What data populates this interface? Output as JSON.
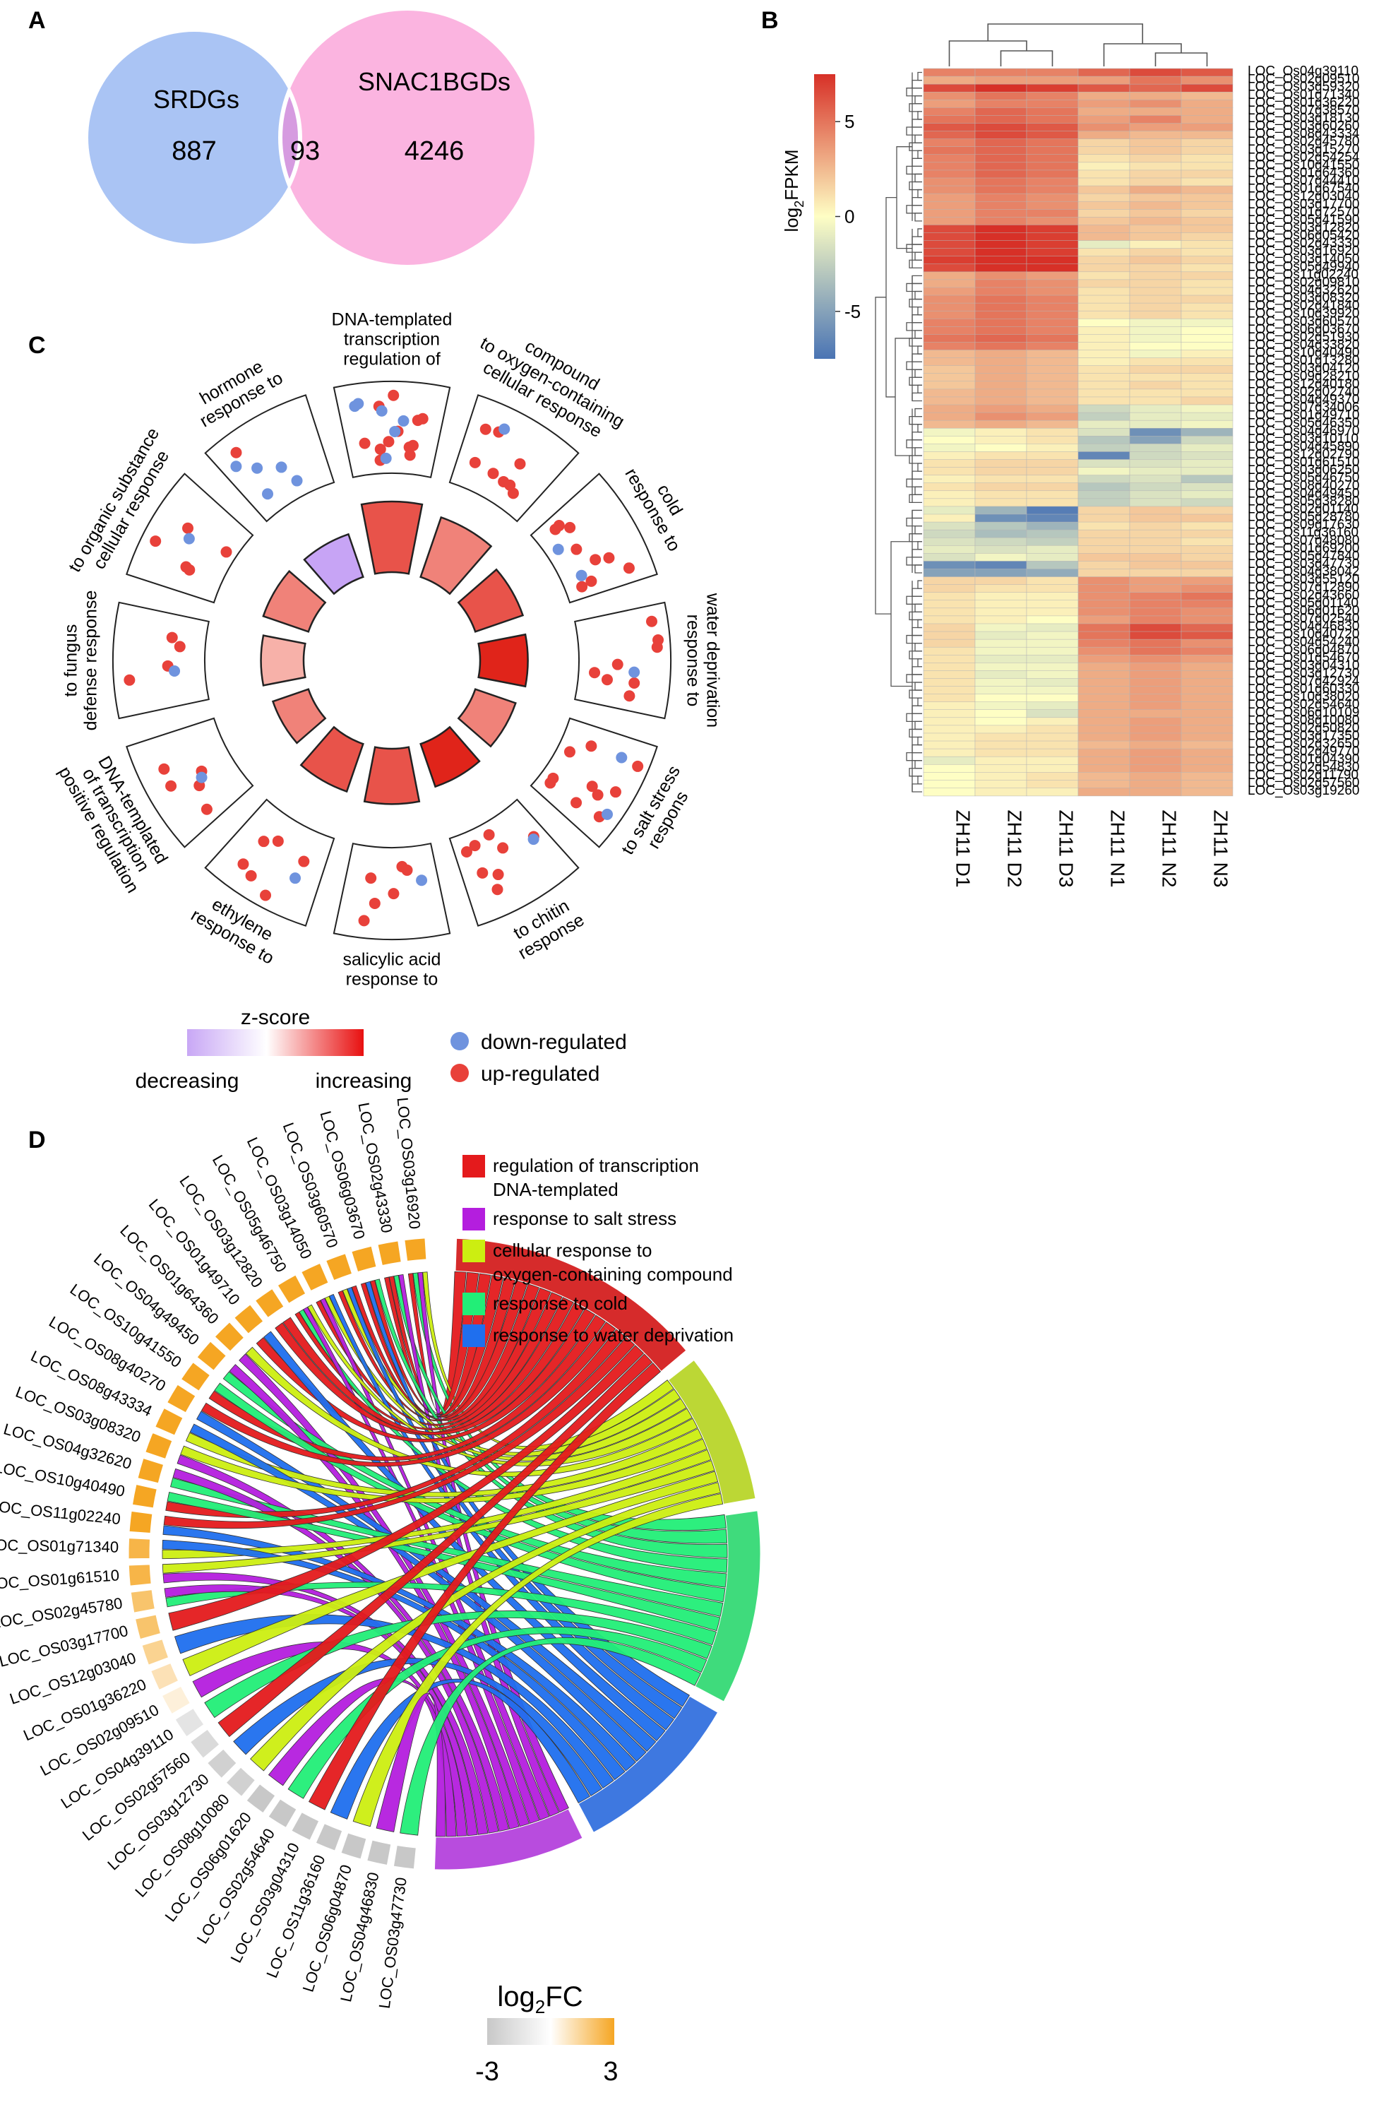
{
  "panels": {
    "A": "A",
    "B": "B",
    "C": "C",
    "D": "D"
  },
  "chart_data": [
    {
      "type": "venn",
      "panel": "A",
      "sets": [
        {
          "name": "SRDGs",
          "only_count": "887",
          "color": "#aac4f4"
        },
        {
          "name": "SNAC1BGDs",
          "only_count": "4246",
          "color": "#fbb4e0"
        }
      ],
      "intersection": "93",
      "intersection_color": "#d69be0"
    },
    {
      "type": "heatmap",
      "panel": "B",
      "legend_title_main": "log",
      "legend_title_sub": "2",
      "legend_title_rest": "FPKM",
      "legend_ticks": [
        "5",
        "0",
        "-5"
      ],
      "legend_tick_values": [
        5,
        0,
        -5
      ],
      "legend_range": [
        -7.5,
        7.5
      ],
      "colors": {
        "low": "#4a74b4",
        "mid": "#fefec4",
        "high": "#d73027"
      },
      "columns": [
        "ZH11 D1",
        "ZH11 D2",
        "ZH11 D3",
        "ZH11 N1",
        "ZH11 N2",
        "ZH11 N3"
      ],
      "rows": [
        "LOC_Os04g39110",
        "LOC_Os02g09510",
        "LOC_Os03g59320",
        "LOC_Os01g71340",
        "LOC_Os01g36220",
        "LOC_Os07g38570",
        "LOC_Os03g18130",
        "LOC_Os03g60260",
        "LOC_Os08g43334",
        "LOC_Os02g45780",
        "LOC_Os03g15270",
        "LOC_Os02g54254",
        "LOC_Os10g41550",
        "LOC_Os01g64360",
        "LOC_Os07g44410",
        "LOC_Os01g67540",
        "LOC_Os12g03040",
        "LOC_Os03g17700",
        "LOC_Os01g72570",
        "LOC_Os05g41590",
        "LOC_Os03g12820",
        "LOC_Os06g05420",
        "LOC_Os02g43330",
        "LOC_Os03g16920",
        "LOC_Os03g14050",
        "LOC_Os05g49940",
        "LOC_Os11g02240",
        "LOC_Os02g09810",
        "LOC_Os04g32620",
        "LOC_Os03g08320",
        "LOC_Os02g41840",
        "LOC_Os10g39920",
        "LOC_Os03g60570",
        "LOC_Os06g03670",
        "LOC_Os02g51930",
        "LOC_Os04g33820",
        "LOC_Os10g40490",
        "LOC_Os01g13280",
        "LOC_Os03g04120",
        "LOC_Os09g28210",
        "LOC_Os12g40180",
        "LOC_Os02g02740",
        "LOC_Os04g49370",
        "LOC_Os07g34006",
        "LOC_Os01g49710",
        "LOC_Os05g46350",
        "LOC_Os04g46970",
        "LOC_Os03g10110",
        "LOC_Os04g45890",
        "LOC_Os12g02790",
        "LOC_Os01g61510",
        "LOC_Os03g06250",
        "LOC_Os05g46750",
        "LOC_Os08g40270",
        "LOC_Os04g49450",
        "LOC_Os05g38280",
        "LOC_Os02g01140",
        "LOC_Os05g28780",
        "LOC_Os09g17630",
        "LOC_Os11g36160",
        "LOC_Os07g48080",
        "LOC_Os01g69200",
        "LOC_Os05g47840",
        "LOC_Os03g47730",
        "LOC_Os04g38042",
        "LOC_Os03g55120",
        "LOC_Os07g12890",
        "LOC_Os02g43660",
        "LOC_Os05g01140",
        "LOC_Os06g01620",
        "LOC_Os07g02540",
        "LOC_Os04g46830",
        "LOC_Os10g40720",
        "LOC_Os04g54240",
        "LOC_Os06g04870",
        "LOC_Os01g54670",
        "LOC_Os03g04310",
        "LOC_Os03g12730",
        "LOC_Os07g42924",
        "LOC_Os01g60330",
        "LOC_Os10g38020",
        "LOC_Os02g54640",
        "LOC_Os06g10109",
        "LOC_Os08g10080",
        "LOC_Os02g50820",
        "LOC_Os03g17350",
        "LOC_Os02g32650",
        "LOC_Os02g49770",
        "LOC_Os01g04390",
        "LOC_Os02g54830",
        "LOC_Os02g11790",
        "LOC_Os02g57560",
        "LOC_Os03g19260"
      ],
      "values": [
        [
          4.5,
          4.5,
          4.5,
          5.5,
          6.5,
          6
        ],
        [
          3,
          3.5,
          3.5,
          3.5,
          5,
          4
        ],
        [
          6.5,
          7.5,
          7,
          6,
          5.5,
          6.5
        ],
        [
          4,
          5,
          4.5,
          3,
          3,
          2.5
        ],
        [
          3.5,
          4.5,
          4.5,
          3.5,
          4,
          3
        ],
        [
          4.5,
          5.5,
          5,
          3,
          3,
          3
        ],
        [
          5,
          5.5,
          5,
          3.5,
          4.5,
          3
        ],
        [
          6,
          6.5,
          6,
          4,
          3.5,
          3.5
        ],
        [
          5.5,
          6.5,
          6,
          3,
          2.5,
          2.5
        ],
        [
          4.5,
          5.5,
          5,
          1.5,
          2,
          1.5
        ],
        [
          5,
          5.5,
          5,
          1.5,
          2,
          1.5
        ],
        [
          4.5,
          5.5,
          5,
          1,
          1.5,
          1
        ],
        [
          4.5,
          5.5,
          5,
          0.5,
          1,
          1
        ],
        [
          4.5,
          5.5,
          5,
          1,
          1.5,
          1.5
        ],
        [
          4,
          5,
          4.5,
          1,
          1.5,
          1
        ],
        [
          4,
          5,
          4.5,
          2,
          3,
          2.5
        ],
        [
          3.5,
          4.5,
          4,
          1.5,
          2,
          2
        ],
        [
          3.5,
          4.5,
          4,
          2,
          2.5,
          2
        ],
        [
          3.5,
          4.5,
          4.5,
          1.5,
          2,
          1.5
        ],
        [
          3.5,
          4.5,
          4,
          2,
          2.5,
          2
        ],
        [
          6.5,
          7.5,
          7,
          2.5,
          2,
          2
        ],
        [
          6.5,
          7.5,
          7,
          2.5,
          2,
          1.5
        ],
        [
          6.5,
          7.5,
          7,
          -1,
          0.5,
          1
        ],
        [
          6.5,
          7.5,
          7,
          1,
          1.5,
          1
        ],
        [
          7,
          8,
          7.5,
          1.5,
          2,
          1.5
        ],
        [
          6.5,
          8,
          7.5,
          1.5,
          1.5,
          1
        ],
        [
          3,
          4,
          3.5,
          1,
          1.5,
          1.5
        ],
        [
          3,
          4.5,
          4,
          1.5,
          1.5,
          1
        ],
        [
          3.5,
          4.5,
          4,
          1,
          1.5,
          1
        ],
        [
          4,
          5,
          4.5,
          1,
          1.5,
          1.5
        ],
        [
          4,
          5,
          4.5,
          1,
          1.5,
          1
        ],
        [
          4,
          5,
          4.5,
          1,
          1.5,
          1
        ],
        [
          4.5,
          5,
          4.5,
          0,
          -0.5,
          -0.5
        ],
        [
          4.5,
          5,
          4.5,
          0.5,
          -0.5,
          0
        ],
        [
          5,
          5.5,
          5,
          0.5,
          -0.5,
          0
        ],
        [
          4.5,
          5,
          4.5,
          0.5,
          0,
          0
        ],
        [
          2.5,
          3,
          2.5,
          0.5,
          -0.5,
          0.5
        ],
        [
          2.5,
          3,
          2.5,
          0.5,
          1,
          1
        ],
        [
          2,
          3,
          2.5,
          1,
          1.5,
          1.5
        ],
        [
          2,
          3,
          2.5,
          1,
          1,
          1
        ],
        [
          2,
          3,
          2.5,
          1,
          1.5,
          1
        ],
        [
          2.5,
          3,
          2.5,
          1,
          1,
          1
        ],
        [
          2.5,
          3,
          2.5,
          1,
          1,
          1.5
        ],
        [
          3,
          3.5,
          3,
          -2,
          -1,
          -0.5
        ],
        [
          3,
          4,
          3.5,
          -2.5,
          -1,
          -1
        ],
        [
          2.5,
          3,
          2.5,
          -1,
          -1,
          -0.5
        ],
        [
          -0.5,
          0.5,
          1,
          -1.5,
          -6,
          -4
        ],
        [
          0,
          0.5,
          1,
          -3,
          -5,
          -2
        ],
        [
          -0.5,
          0,
          0.5,
          -2.5,
          -2,
          -1
        ],
        [
          0.5,
          1,
          1,
          -6.5,
          -2,
          -1.5
        ],
        [
          1,
          1.5,
          1.5,
          -1.5,
          -1.5,
          -1
        ],
        [
          1,
          1.5,
          1.5,
          -0.5,
          -1,
          -1
        ],
        [
          0.5,
          1,
          1,
          -2,
          -1.5,
          -3
        ],
        [
          1,
          1.5,
          1.5,
          -3,
          -2,
          -1.5
        ],
        [
          0.5,
          1,
          1,
          -2.5,
          -1.5,
          -1
        ],
        [
          0.5,
          1,
          1,
          -2.5,
          -1.5,
          -2
        ],
        [
          -1,
          -4,
          -7,
          1.5,
          2,
          1.5
        ],
        [
          0.5,
          -6,
          -6.5,
          1.5,
          2,
          2
        ],
        [
          -1.5,
          -3,
          -4,
          1,
          1.5,
          1
        ],
        [
          -2,
          -3.5,
          -3,
          1.5,
          1.5,
          1.5
        ],
        [
          -1.5,
          -2,
          -2.5,
          1.5,
          1.5,
          1
        ],
        [
          -1,
          -1.5,
          -1,
          1.5,
          1.5,
          1.5
        ],
        [
          -1.5,
          -0.5,
          -1,
          2,
          2,
          1.5
        ],
        [
          -6,
          -6.5,
          -3,
          1.5,
          2,
          2
        ],
        [
          -5,
          -5,
          -4.5,
          1.5,
          1.5,
          1.5
        ],
        [
          1.5,
          1.5,
          1,
          4,
          3.5,
          3.5
        ],
        [
          1.5,
          1,
          1,
          4,
          3.5,
          4
        ],
        [
          1,
          0.5,
          0.5,
          4,
          4.5,
          5
        ],
        [
          1,
          0.5,
          0.5,
          4,
          4.5,
          4.5
        ],
        [
          1,
          0.5,
          0.5,
          4,
          4.5,
          4
        ],
        [
          1,
          0.5,
          0,
          3.5,
          4.5,
          4
        ],
        [
          1.5,
          -0.5,
          -1,
          5,
          6.5,
          5.5
        ],
        [
          1.5,
          -1,
          -0.5,
          5,
          6.5,
          6
        ],
        [
          1.5,
          -0.5,
          -0.5,
          4.5,
          5,
          4
        ],
        [
          1,
          -0.5,
          -0.5,
          4,
          5,
          4.5
        ],
        [
          1,
          -1,
          -1,
          3.5,
          4,
          3.5
        ],
        [
          1,
          -0.5,
          -0.5,
          3,
          3.5,
          3
        ],
        [
          1,
          -1,
          -0.5,
          3,
          3.5,
          3
        ],
        [
          1,
          -0.5,
          -1,
          3,
          3.5,
          3
        ],
        [
          1,
          -0.5,
          -0.5,
          3,
          3.5,
          3
        ],
        [
          1,
          0,
          0,
          3,
          3.5,
          3
        ],
        [
          0.5,
          -0.5,
          -1,
          3,
          3.5,
          3
        ],
        [
          0.5,
          0,
          -1.5,
          3,
          3,
          3
        ],
        [
          0.5,
          0,
          0.5,
          3,
          3.5,
          3
        ],
        [
          0.5,
          0.5,
          1,
          3,
          3.5,
          3
        ],
        [
          0.5,
          1,
          1,
          3,
          3.5,
          3
        ],
        [
          0.5,
          1,
          1,
          2.5,
          3,
          2.5
        ],
        [
          0.5,
          1,
          1,
          3,
          3.5,
          3
        ],
        [
          -1,
          0.5,
          0.5,
          3,
          3.5,
          3
        ],
        [
          0,
          0.5,
          0.5,
          3,
          3.5,
          3
        ],
        [
          0,
          0.5,
          1,
          2.5,
          3,
          2.5
        ],
        [
          0,
          0.5,
          1,
          2.5,
          3,
          2.5
        ],
        [
          0,
          0.5,
          0.5,
          3,
          3,
          2.5
        ]
      ]
    },
    {
      "type": "circular_bar_scatter",
      "panel": "C",
      "terms": [
        {
          "label": "regulation of\ntranscription\nDNA-templated",
          "zscore": 3,
          "bar": 1.0,
          "up": 12,
          "down": 6
        },
        {
          "label": "cellular response\nto oxygen-containing\ncompound",
          "zscore": 2,
          "bar": 0.85,
          "up": 8,
          "down": 1
        },
        {
          "label": "response to\ncold",
          "zscore": 3,
          "bar": 0.6,
          "up": 9,
          "down": 2
        },
        {
          "label": "response to\nwater deprivation",
          "zscore": 4,
          "bar": 0.55,
          "up": 8,
          "down": 1
        },
        {
          "label": "respons\nto salt stress",
          "zscore": 2,
          "bar": 0.45,
          "up": 10,
          "down": 2
        },
        {
          "label": "response\nto chitin",
          "zscore": 4,
          "bar": 0.5,
          "up": 8,
          "down": 1
        },
        {
          "label": "response to\nsalicylic acid",
          "zscore": 3,
          "bar": 0.7,
          "up": 6,
          "down": 1
        },
        {
          "label": "response to\nethylene",
          "zscore": 3,
          "bar": 0.6,
          "up": 6,
          "down": 1
        },
        {
          "label": "positive regulation\nof transcription\nDNA-templated",
          "zscore": 2,
          "bar": 0.35,
          "up": 5,
          "down": 1
        },
        {
          "label": "defense response\nto fungus",
          "zscore": 1,
          "bar": 0.45,
          "up": 4,
          "down": 1
        },
        {
          "label": "cellular response\nto organic substance",
          "zscore": 2,
          "bar": 0.55,
          "up": 5,
          "down": 1
        },
        {
          "label": "response to\nhormone",
          "zscore": -2,
          "bar": 0.5,
          "up": 1,
          "down": 5
        }
      ],
      "legend": {
        "title": "z-score",
        "low_label": "decreasing",
        "high_label": "increasing",
        "down_label": "down-regulated",
        "up_label": "up-regulated",
        "down_color": "#6f93de",
        "up_color": "#e8413a"
      }
    },
    {
      "type": "chord",
      "panel": "D",
      "genes": [
        {
          "name": "LOC_OS03g16920",
          "log2fc": 3
        },
        {
          "name": "LOC_OS02g43330",
          "log2fc": 3
        },
        {
          "name": "LOC_OS06g03670",
          "log2fc": 3
        },
        {
          "name": "LOC_OS03g60570",
          "log2fc": 3
        },
        {
          "name": "LOC_OS03g14050",
          "log2fc": 3
        },
        {
          "name": "LOC_OS05g46750",
          "log2fc": 3
        },
        {
          "name": "LOC_OS03g12820",
          "log2fc": 3
        },
        {
          "name": "LOC_OS01g49710",
          "log2fc": 3
        },
        {
          "name": "LOC_OS01g64360",
          "log2fc": 3
        },
        {
          "name": "LOC_OS04g49450",
          "log2fc": 3
        },
        {
          "name": "LOC_OS10g41550",
          "log2fc": 3
        },
        {
          "name": "LOC_OS08g40270",
          "log2fc": 3
        },
        {
          "name": "LOC_OS08g43334",
          "log2fc": 3
        },
        {
          "name": "LOC_OS03g08320",
          "log2fc": 3
        },
        {
          "name": "LOC_OS04g32620",
          "log2fc": 3
        },
        {
          "name": "LOC_OS10g40490",
          "log2fc": 3
        },
        {
          "name": "LOC_OS11g02240",
          "log2fc": 3
        },
        {
          "name": "LOC_OS01g71340",
          "log2fc": 2.5
        },
        {
          "name": "LOC_OS01g61510",
          "log2fc": 2.5
        },
        {
          "name": "LOC_OS02g45780",
          "log2fc": 2
        },
        {
          "name": "LOC_OS03g17700",
          "log2fc": 2
        },
        {
          "name": "LOC_OS12g03040",
          "log2fc": 1.5
        },
        {
          "name": "LOC_OS01g36220",
          "log2fc": 1
        },
        {
          "name": "LOC_OS02g09510",
          "log2fc": 0.5
        },
        {
          "name": "LOC_OS04g39110",
          "log2fc": -1.5
        },
        {
          "name": "LOC_OS02g57560",
          "log2fc": -2
        },
        {
          "name": "LOC_OS03g12730",
          "log2fc": -2.5
        },
        {
          "name": "LOC_OS08g10080",
          "log2fc": -2.5
        },
        {
          "name": "LOC_OS06g01620",
          "log2fc": -3
        },
        {
          "name": "LOC_OS02g54640",
          "log2fc": -3
        },
        {
          "name": "LOC_OS03g04310",
          "log2fc": -3
        },
        {
          "name": "LOC_OS11g36160",
          "log2fc": -3
        },
        {
          "name": "LOC_OS06g04870",
          "log2fc": -3
        },
        {
          "name": "LOC_OS04g46830",
          "log2fc": -3
        },
        {
          "name": "LOC_OS03g47730",
          "log2fc": -3
        }
      ],
      "terms": [
        {
          "name": "regulation of transcription\nDNA-templated",
          "color": "#e41a1c",
          "arc": "#d62b2b"
        },
        {
          "name": "cellular response to\noxygen-containing compound",
          "color": "#ccee11",
          "arc": "#bcd735"
        },
        {
          "name": "response to cold",
          "color": "#22ee77",
          "arc": "#3fdb7c"
        },
        {
          "name": "response to water deprivation",
          "color": "#1f6fee",
          "arc": "#3e78e0"
        },
        {
          "name": "response to salt stress",
          "color": "#b41ede",
          "arc": "#b84cde"
        }
      ],
      "legend_order": [
        0,
        4,
        1,
        2,
        3
      ],
      "log2fc_legend": {
        "title_main": "log",
        "title_sub": "2",
        "title_rest": "FC",
        "min_label": "-3",
        "max_label": "3"
      },
      "colors": {
        "low": "#c8c8c8",
        "mid": "#ffffff",
        "high": "#f5a623"
      }
    }
  ]
}
